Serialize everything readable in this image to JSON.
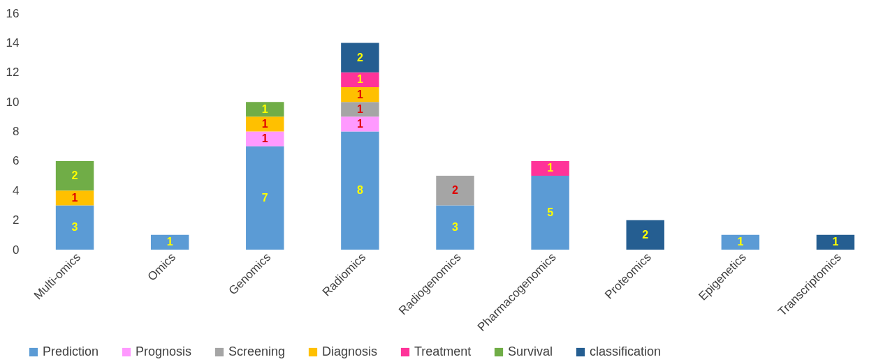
{
  "chart_data": {
    "type": "bar",
    "stacked": true,
    "data_labels": true,
    "legend": "bottom",
    "grid": false,
    "categories": [
      "Multi-omics",
      "Omics",
      "Genomics",
      "Radiomics",
      "Radiogenomics",
      "Pharmacogenomics",
      "Proteomics",
      "Epigenetics",
      "Transcriptomics"
    ],
    "ylim": [
      0,
      16
    ],
    "yticks": [
      0,
      2,
      4,
      6,
      8,
      10,
      12,
      14,
      16
    ],
    "series": [
      {
        "name": "Prediction",
        "color": "#5b9bd5",
        "values": [
          3,
          1,
          7,
          8,
          3,
          5,
          null,
          1,
          null
        ]
      },
      {
        "name": "Prognosis",
        "color": "#ff99ff",
        "values": [
          null,
          null,
          1,
          1,
          null,
          null,
          null,
          null,
          null
        ]
      },
      {
        "name": "Screening",
        "color": "#a5a5a5",
        "values": [
          null,
          null,
          null,
          1,
          2,
          null,
          null,
          null,
          null
        ]
      },
      {
        "name": "Diagnosis",
        "color": "#ffc000",
        "values": [
          1,
          null,
          1,
          1,
          null,
          null,
          null,
          null,
          null
        ]
      },
      {
        "name": "Treatment",
        "color": "#ff3399",
        "values": [
          null,
          null,
          null,
          1,
          null,
          1,
          null,
          null,
          null
        ]
      },
      {
        "name": "Survival",
        "color": "#70ad47",
        "values": [
          2,
          null,
          1,
          null,
          null,
          null,
          null,
          null,
          null
        ]
      },
      {
        "name": "classification",
        "color": "#255e91",
        "values": [
          null,
          null,
          null,
          2,
          null,
          null,
          2,
          null,
          1
        ]
      }
    ]
  }
}
